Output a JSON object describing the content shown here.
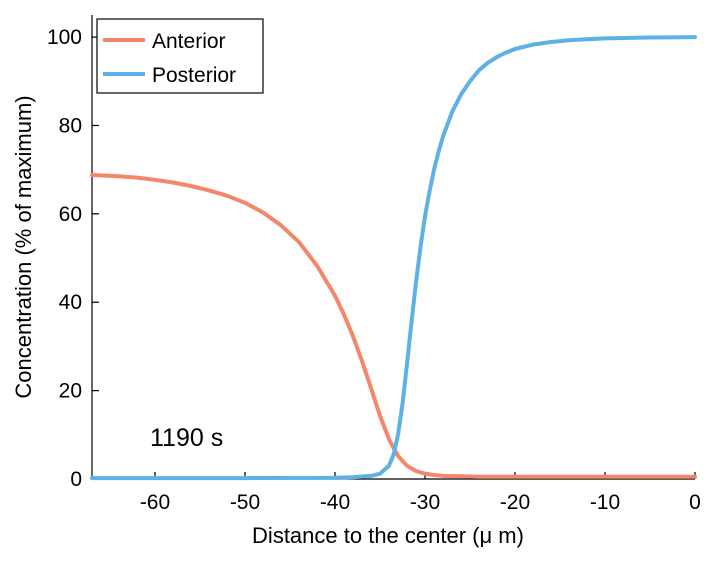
{
  "chart_data": {
    "type": "line",
    "title": "",
    "xlabel": "Distance to the center (μ m)",
    "ylabel": "Concentration (% of maximum)",
    "xlim": [
      -67,
      0
    ],
    "ylim": [
      0,
      105
    ],
    "x_ticks": [
      -60,
      -50,
      -40,
      -30,
      -20,
      -10,
      0
    ],
    "y_ticks": [
      0,
      20,
      40,
      60,
      80,
      100
    ],
    "grid": false,
    "legend_position": "top-left",
    "annotation": "1190 s",
    "series": [
      {
        "name": "Anterior",
        "color": "#f4866b",
        "x": [
          -67,
          -64,
          -62,
          -60,
          -58,
          -56,
          -54,
          -52,
          -50,
          -48,
          -46,
          -44,
          -42,
          -40,
          -39,
          -38,
          -37,
          -36,
          -35,
          -34,
          -33,
          -32,
          -31,
          -30,
          -29,
          -28,
          -26,
          -24,
          -22,
          -20,
          -15,
          -10,
          -5,
          0
        ],
        "values": [
          68.8,
          68.5,
          68.2,
          67.7,
          67.1,
          66.3,
          65.3,
          64.1,
          62.5,
          60.3,
          57.4,
          53.6,
          48.3,
          41.5,
          37.2,
          32.3,
          26.7,
          20.6,
          14.3,
          9.0,
          5.2,
          3.0,
          1.8,
          1.2,
          0.9,
          0.7,
          0.6,
          0.5,
          0.5,
          0.5,
          0.5,
          0.5,
          0.5,
          0.5
        ]
      },
      {
        "name": "Posterior",
        "color": "#5eb0e5",
        "x": [
          -67,
          -60,
          -50,
          -40,
          -38,
          -36,
          -35,
          -34,
          -33.5,
          -33,
          -32.5,
          -32,
          -31.5,
          -31,
          -30.5,
          -30,
          -29.5,
          -29,
          -28.5,
          -28,
          -27,
          -26,
          -25,
          -24,
          -23,
          -22,
          -21,
          -20,
          -18,
          -16,
          -14,
          -12,
          -10,
          -5,
          0
        ],
        "values": [
          0.2,
          0.2,
          0.2,
          0.3,
          0.4,
          0.7,
          1.2,
          3.0,
          5.5,
          10.0,
          17.0,
          26.0,
          35.5,
          44.5,
          52.5,
          59.5,
          65.0,
          70.0,
          74.0,
          77.5,
          83.0,
          87.0,
          90.0,
          92.5,
          94.2,
          95.5,
          96.5,
          97.3,
          98.3,
          98.9,
          99.3,
          99.5,
          99.7,
          99.9,
          100.0
        ]
      }
    ]
  }
}
